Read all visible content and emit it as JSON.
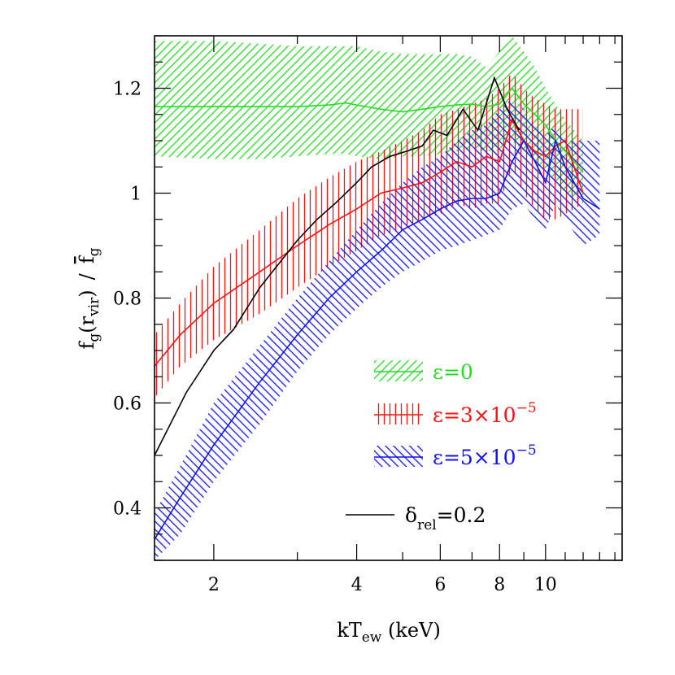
{
  "chart_data": {
    "type": "line",
    "xscale": "log",
    "xlim": [
      1.5,
      14.5
    ],
    "ylim": [
      0.3,
      1.3
    ],
    "xticks": [
      2,
      4,
      6,
      8,
      10
    ],
    "xtick_labels": [
      "2",
      "4",
      "6",
      "8",
      "10"
    ],
    "yticks": [
      0.4,
      0.6,
      0.8,
      1.0,
      1.2
    ],
    "ytick_labels": [
      "0.4",
      "0.6",
      "0.8",
      "1",
      "1.2"
    ],
    "xlabel_main": "kT",
    "xlabel_sub": "ew",
    "xlabel_rest": " (keV)",
    "ylabel_f": "f",
    "ylabel_g": "g",
    "ylabel_paren_open": "(r",
    "ylabel_vir": "vir",
    "ylabel_paren_close": ")",
    "ylabel_slash": "/",
    "ylabel_fbar": "f",
    "ylabel_fbar_g": "g",
    "legend_position": "bottom-right",
    "series": [
      {
        "name": "ε=0",
        "legend_text": "ε=0",
        "color": "#22dd22",
        "hatch": "diagonal-up",
        "x": [
          1.5,
          2.0,
          2.5,
          3.0,
          3.5,
          3.8,
          4.0,
          4.5,
          5.0,
          5.5,
          6.0,
          6.5,
          7.0,
          7.5,
          8.0,
          8.5,
          9.0,
          9.5,
          10.0,
          10.5,
          11.0,
          12.0
        ],
        "y": [
          1.165,
          1.165,
          1.165,
          1.165,
          1.168,
          1.172,
          1.168,
          1.16,
          1.155,
          1.16,
          1.165,
          1.168,
          1.17,
          1.165,
          1.17,
          1.2,
          1.17,
          1.15,
          1.13,
          1.1,
          1.08,
          1.04
        ],
        "upper": [
          1.29,
          1.29,
          1.285,
          1.28,
          1.28,
          1.28,
          1.28,
          1.27,
          1.265,
          1.265,
          1.265,
          1.265,
          1.26,
          1.24,
          1.27,
          1.3,
          1.27,
          1.24,
          1.2,
          1.17,
          1.14,
          1.1
        ],
        "lower": [
          1.07,
          1.065,
          1.065,
          1.07,
          1.075,
          1.075,
          1.07,
          1.065,
          1.07,
          1.07,
          1.075,
          1.08,
          1.085,
          1.08,
          1.08,
          1.1,
          1.08,
          1.06,
          1.04,
          1.02,
          1.0,
          0.98
        ]
      },
      {
        "name": "ε=3×10⁻⁵",
        "legend_text": "ε=3×10",
        "legend_sup": "−5",
        "color": "#ff1111",
        "hatch": "vertical",
        "x": [
          1.5,
          1.7,
          2.0,
          2.5,
          3.0,
          3.5,
          4.0,
          4.5,
          5.0,
          5.5,
          6.0,
          6.5,
          7.0,
          7.5,
          8.0,
          8.5,
          9.0,
          9.5,
          10.0,
          10.5,
          11.0,
          12.0
        ],
        "y": [
          0.67,
          0.73,
          0.79,
          0.85,
          0.9,
          0.94,
          0.97,
          1.0,
          1.01,
          1.02,
          1.04,
          1.06,
          1.05,
          1.07,
          1.06,
          1.14,
          1.1,
          1.08,
          1.07,
          1.09,
          1.1,
          1.0
        ],
        "upper": [
          0.73,
          0.79,
          0.86,
          0.93,
          0.99,
          1.03,
          1.06,
          1.08,
          1.1,
          1.12,
          1.15,
          1.16,
          1.17,
          1.18,
          1.2,
          1.23,
          1.2,
          1.18,
          1.17,
          1.16,
          1.16,
          1.16
        ],
        "lower": [
          0.61,
          0.67,
          0.72,
          0.77,
          0.82,
          0.86,
          0.89,
          0.92,
          0.93,
          0.95,
          0.96,
          0.98,
          0.97,
          0.98,
          0.98,
          1.05,
          1.0,
          0.97,
          0.95,
          0.95,
          0.96,
          0.98
        ]
      },
      {
        "name": "ε=5×10⁻⁵",
        "legend_text": "ε=5×10",
        "legend_sup": "−5",
        "color": "#1111ff",
        "hatch": "diagonal-down",
        "x": [
          1.5,
          1.7,
          2.0,
          2.5,
          3.0,
          3.5,
          4.0,
          4.5,
          5.0,
          5.5,
          6.0,
          6.5,
          7.0,
          7.5,
          8.0,
          8.5,
          9.0,
          9.5,
          10.0,
          10.5,
          11.0,
          12.0,
          13.0
        ],
        "y": [
          0.34,
          0.42,
          0.52,
          0.64,
          0.73,
          0.8,
          0.85,
          0.89,
          0.93,
          0.95,
          0.97,
          0.985,
          0.99,
          0.99,
          1.0,
          1.06,
          1.1,
          1.06,
          1.02,
          1.1,
          1.05,
          0.99,
          0.97
        ],
        "upper": [
          0.39,
          0.48,
          0.6,
          0.71,
          0.8,
          0.87,
          0.93,
          0.98,
          1.02,
          1.05,
          1.07,
          1.1,
          1.12,
          1.13,
          1.16,
          1.18,
          1.16,
          1.13,
          1.11,
          1.13,
          1.1,
          1.1,
          1.1
        ],
        "lower": [
          0.3,
          0.35,
          0.45,
          0.56,
          0.66,
          0.73,
          0.78,
          0.82,
          0.85,
          0.87,
          0.89,
          0.9,
          0.91,
          0.92,
          0.93,
          0.97,
          0.98,
          0.95,
          0.93,
          0.98,
          0.95,
          0.9,
          0.92
        ]
      },
      {
        "name": "δ_rel=0.2",
        "legend_text": "δ",
        "legend_sub": "rel",
        "legend_rest": "=0.2",
        "color": "#000000",
        "hatch": "none",
        "x": [
          1.5,
          1.75,
          2.0,
          2.2,
          2.5,
          3.0,
          3.3,
          3.6,
          4.0,
          4.3,
          4.7,
          5.1,
          5.5,
          5.8,
          6.2,
          6.7,
          7.2,
          7.8,
          8.3,
          8.8
        ],
        "y": [
          0.5,
          0.62,
          0.7,
          0.74,
          0.82,
          0.91,
          0.95,
          0.98,
          1.02,
          1.05,
          1.07,
          1.08,
          1.09,
          1.12,
          1.11,
          1.16,
          1.12,
          1.22,
          1.16,
          1.12
        ]
      }
    ]
  }
}
